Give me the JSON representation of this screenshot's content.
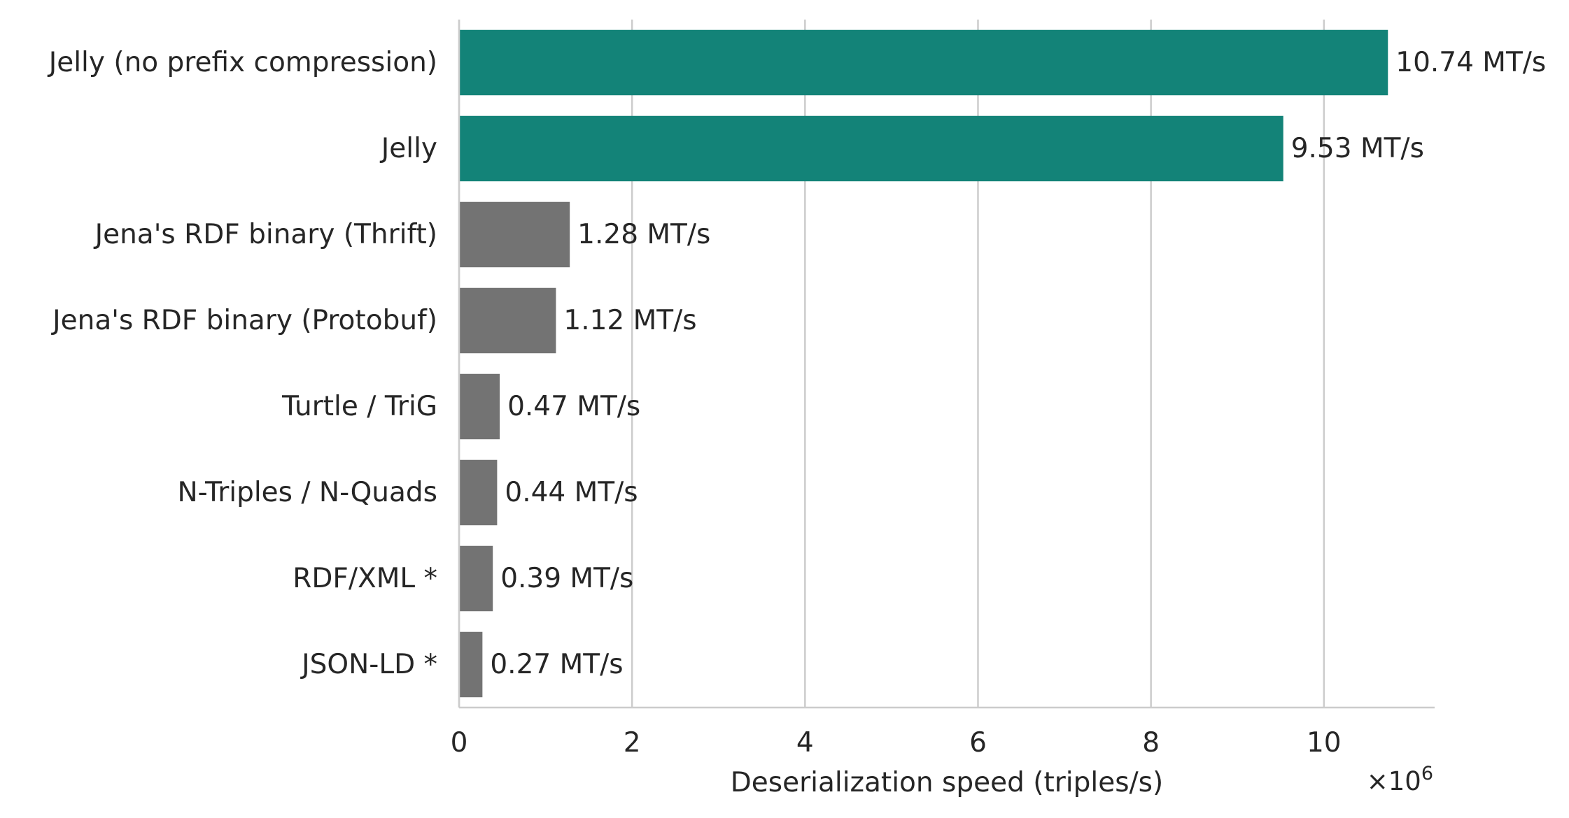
{
  "chart_data": {
    "type": "bar",
    "orientation": "horizontal",
    "categories": [
      "Jelly (no prefix compression)",
      "Jelly",
      "Jena's RDF binary (Thrift)",
      "Jena's RDF binary (Protobuf)",
      "Turtle / TriG",
      "N-Triples / N-Quads",
      "RDF/XML *",
      "JSON-LD *"
    ],
    "values": [
      10740000,
      9530000,
      1280000,
      1120000,
      470000,
      440000,
      390000,
      270000
    ],
    "value_labels": [
      "10.74 MT/s",
      "9.53 MT/s",
      "1.28 MT/s",
      "1.12 MT/s",
      "0.47 MT/s",
      "0.44 MT/s",
      "0.39 MT/s",
      "0.27 MT/s"
    ],
    "bar_colors": [
      "#138378",
      "#138378",
      "#737373",
      "#737373",
      "#737373",
      "#737373",
      "#737373",
      "#737373"
    ],
    "xlabel": "Deserialization speed (triples/s)",
    "ylabel": "",
    "title": "",
    "xlim": [
      0,
      11280000
    ],
    "xticks": [
      0,
      2000000,
      4000000,
      6000000,
      8000000,
      10000000
    ],
    "xtick_labels": [
      "0",
      "2",
      "4",
      "6",
      "8",
      "10"
    ],
    "offset_text": {
      "base": "×10",
      "exponent": "6"
    },
    "grid": "vertical",
    "legend": "none"
  }
}
